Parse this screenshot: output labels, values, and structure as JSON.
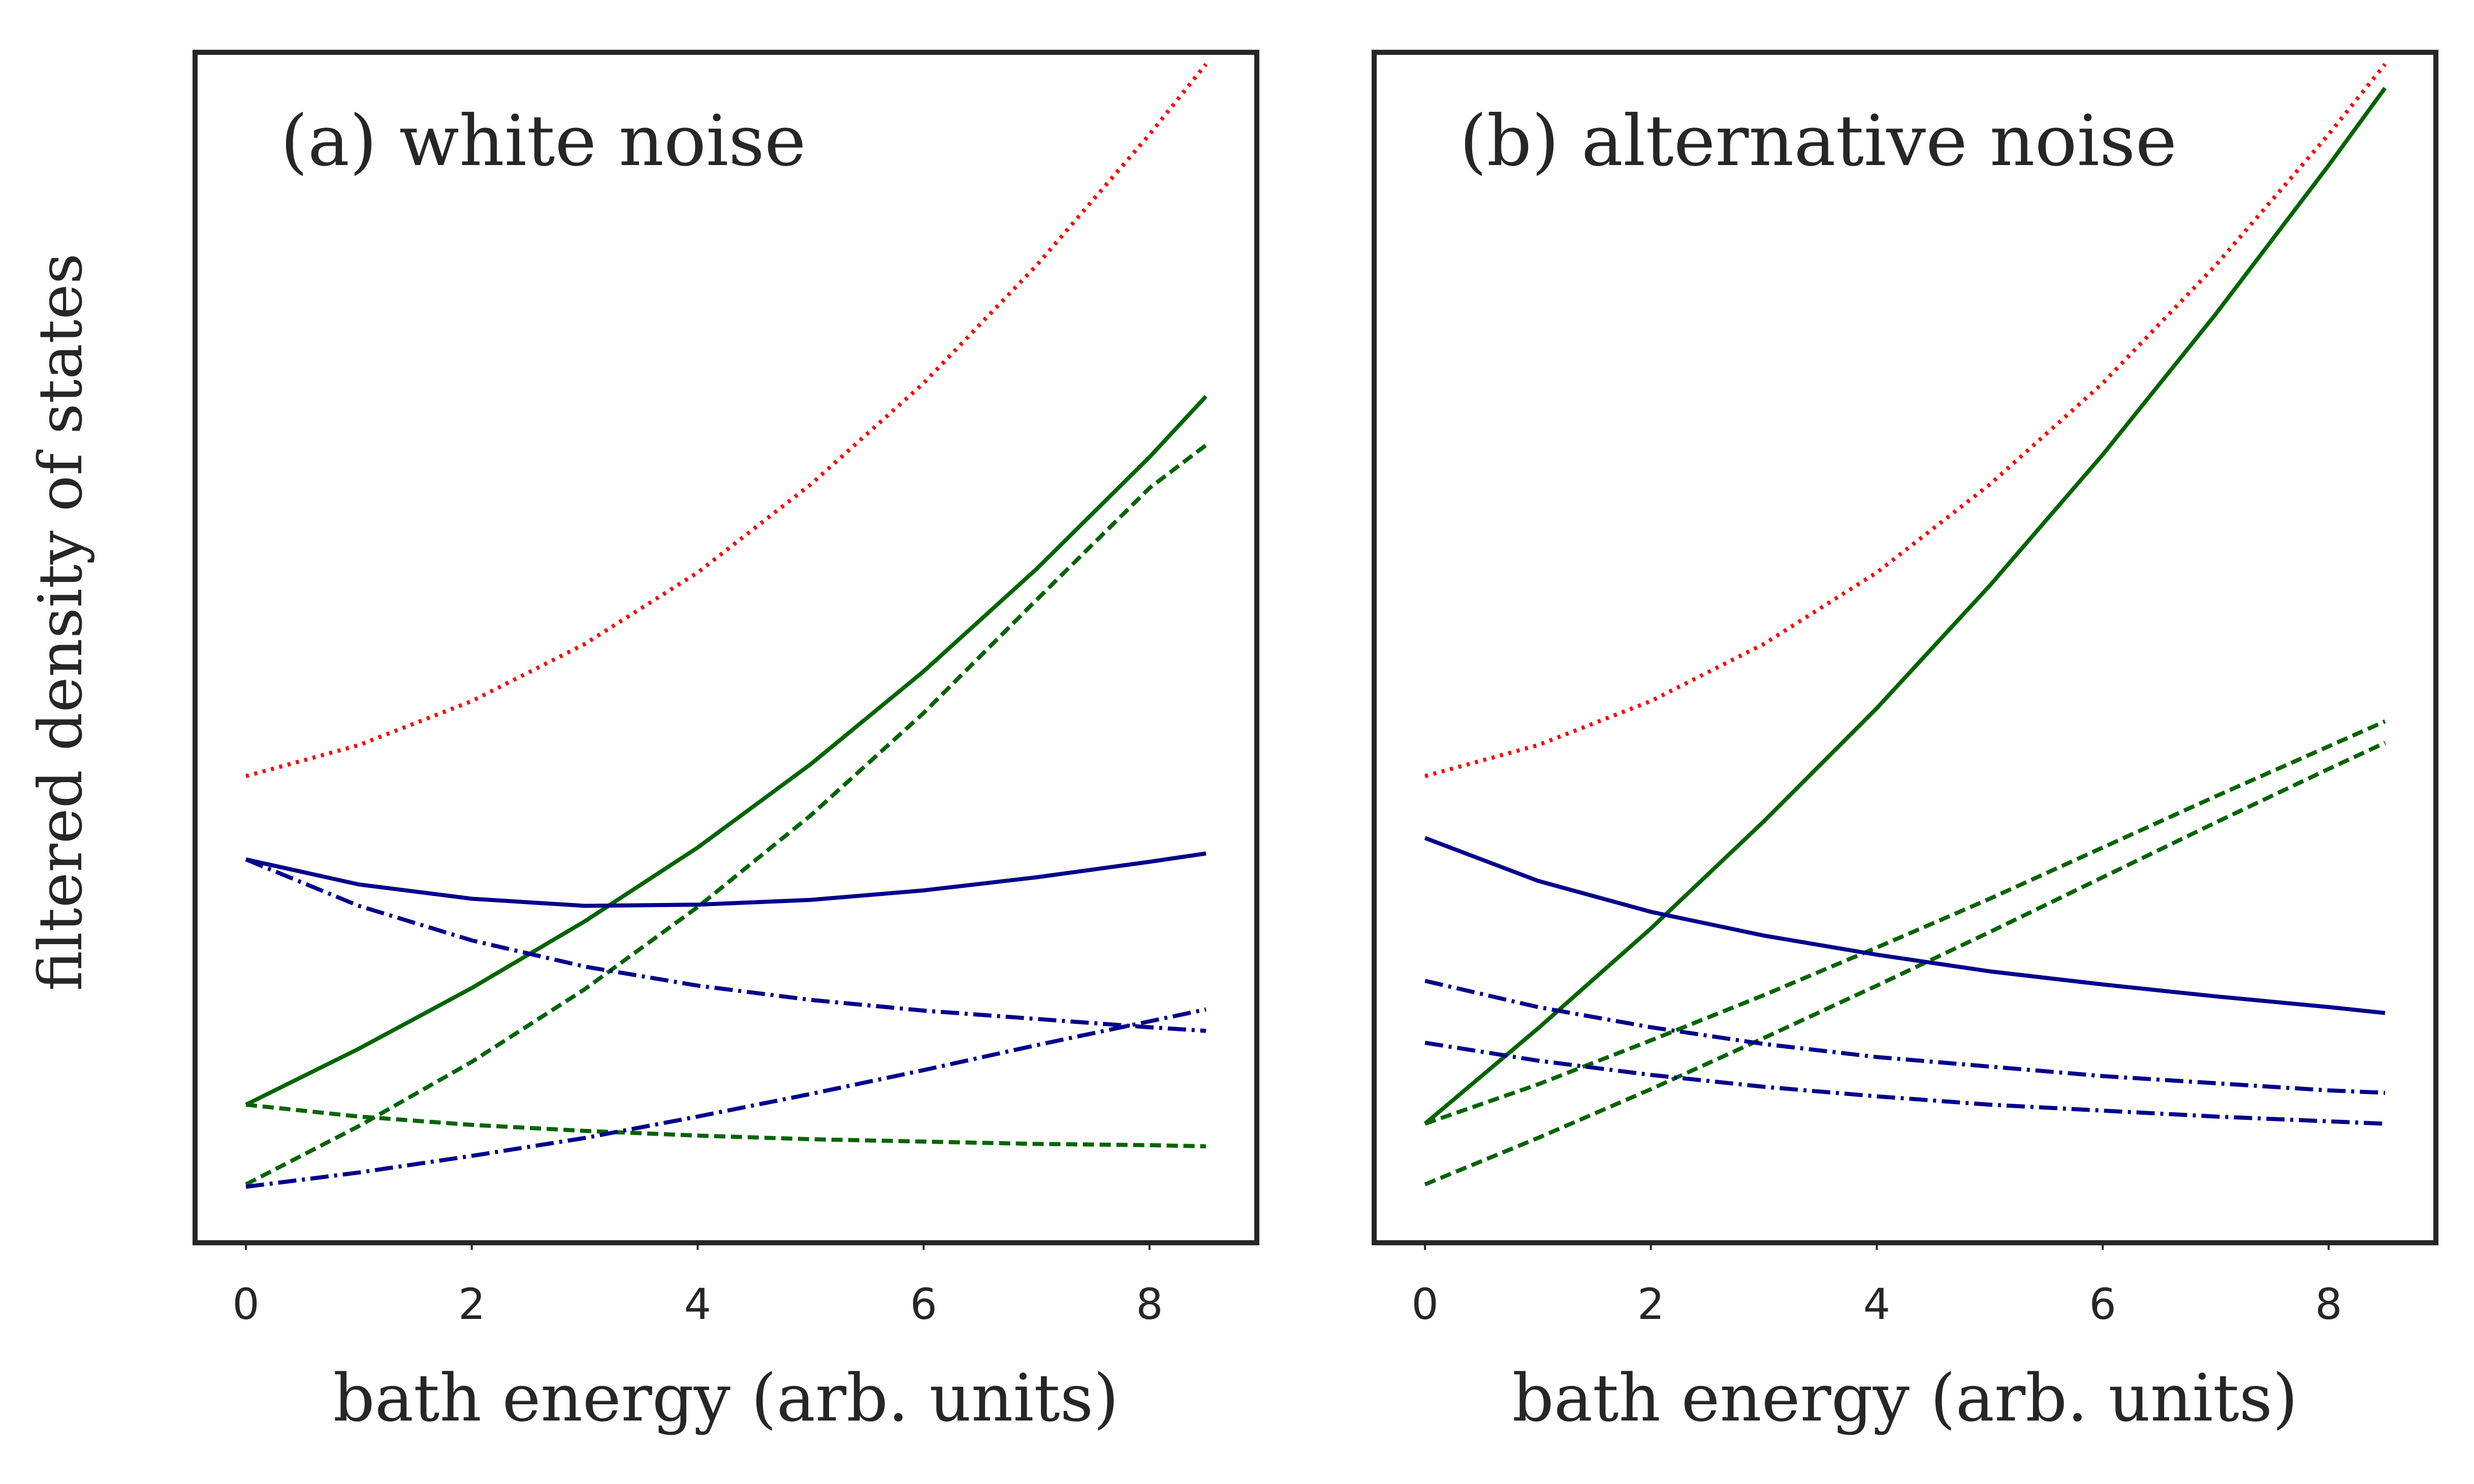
{
  "figure": {
    "ylabel": "filtered density of states"
  },
  "chart_data": [
    {
      "type": "line",
      "title": "(a) white noise",
      "xlabel": "bath energy (arb. units)",
      "ylabel": "filtered density of states",
      "xlim": [
        -0.45,
        8.95
      ],
      "ylim": [
        0,
        1
      ],
      "xticks": [
        0,
        2,
        4,
        6,
        8
      ],
      "xtick_labels": [
        "0",
        "2",
        "4",
        "6",
        "8"
      ],
      "yticks_visible": false,
      "grid": false,
      "series": [
        {
          "name": "red dotted",
          "color": "#ff0000",
          "style": "dotted",
          "x": [
            0,
            1,
            2,
            3,
            4,
            5,
            6,
            7,
            8,
            8.5
          ],
          "y": [
            0.392,
            0.418,
            0.455,
            0.503,
            0.563,
            0.637,
            0.722,
            0.821,
            0.931,
            0.99
          ]
        },
        {
          "name": "green solid",
          "color": "#006400",
          "style": "solid",
          "x": [
            0,
            1,
            2,
            3,
            4,
            5,
            6,
            7,
            8,
            8.5
          ],
          "y": [
            0.116,
            0.163,
            0.214,
            0.27,
            0.332,
            0.402,
            0.48,
            0.566,
            0.66,
            0.711
          ]
        },
        {
          "name": "green dashed A",
          "color": "#006400",
          "style": "dashed",
          "x": [
            0,
            1,
            2,
            3,
            4,
            5,
            6,
            7,
            8,
            8.5
          ],
          "y": [
            0.049,
            0.098,
            0.152,
            0.213,
            0.282,
            0.359,
            0.445,
            0.54,
            0.634,
            0.67
          ]
        },
        {
          "name": "green dashed B",
          "color": "#006400",
          "style": "dashed",
          "x": [
            0,
            1,
            2,
            3,
            4,
            5,
            6,
            7,
            8,
            8.5
          ],
          "y": [
            0.116,
            0.106,
            0.099,
            0.094,
            0.09,
            0.087,
            0.085,
            0.083,
            0.082,
            0.081
          ]
        },
        {
          "name": "blue solid",
          "color": "#00008b",
          "style": "solid",
          "x": [
            0,
            1,
            2,
            3,
            4,
            5,
            6,
            7,
            8,
            8.5
          ],
          "y": [
            0.322,
            0.301,
            0.289,
            0.283,
            0.284,
            0.288,
            0.296,
            0.307,
            0.32,
            0.327
          ]
        },
        {
          "name": "blue dash-dot A",
          "color": "#00008b",
          "style": "dashdot",
          "x": [
            0,
            1,
            2,
            3,
            4,
            5,
            6,
            7,
            8,
            8.5
          ],
          "y": [
            0.322,
            0.283,
            0.254,
            0.232,
            0.216,
            0.204,
            0.195,
            0.188,
            0.181,
            0.178
          ]
        },
        {
          "name": "blue dash-dot B",
          "color": "#00008b",
          "style": "dashdot",
          "x": [
            0,
            1,
            2,
            3,
            4,
            5,
            6,
            7,
            8,
            8.5
          ],
          "y": [
            0.047,
            0.059,
            0.073,
            0.088,
            0.106,
            0.125,
            0.145,
            0.166,
            0.186,
            0.196
          ]
        }
      ]
    },
    {
      "type": "line",
      "title": "(b) alternative noise",
      "xlabel": "bath energy (arb. units)",
      "ylabel": "",
      "xlim": [
        -0.45,
        8.95
      ],
      "ylim": [
        0,
        1
      ],
      "xticks": [
        0,
        2,
        4,
        6,
        8
      ],
      "xtick_labels": [
        "0",
        "2",
        "4",
        "6",
        "8"
      ],
      "yticks_visible": false,
      "grid": false,
      "series": [
        {
          "name": "red dotted",
          "color": "#ff0000",
          "style": "dotted",
          "x": [
            0,
            1,
            2,
            3,
            4,
            5,
            6,
            7,
            8,
            8.5
          ],
          "y": [
            0.392,
            0.418,
            0.455,
            0.503,
            0.563,
            0.637,
            0.722,
            0.821,
            0.931,
            0.99
          ]
        },
        {
          "name": "green solid",
          "color": "#006400",
          "style": "solid",
          "x": [
            0,
            1,
            2,
            3,
            4,
            5,
            6,
            7,
            8,
            8.5
          ],
          "y": [
            0.1,
            0.18,
            0.264,
            0.354,
            0.449,
            0.552,
            0.662,
            0.78,
            0.905,
            0.97
          ]
        },
        {
          "name": "green dashed A",
          "color": "#006400",
          "style": "dashed",
          "x": [
            0,
            1,
            2,
            3,
            4,
            5,
            6,
            7,
            8,
            8.5
          ],
          "y": [
            0.1,
            0.133,
            0.17,
            0.208,
            0.248,
            0.289,
            0.332,
            0.375,
            0.417,
            0.438
          ]
        },
        {
          "name": "green dashed B",
          "color": "#006400",
          "style": "dashed",
          "x": [
            0,
            1,
            2,
            3,
            4,
            5,
            6,
            7,
            8,
            8.5
          ],
          "y": [
            0.049,
            0.088,
            0.129,
            0.172,
            0.216,
            0.261,
            0.307,
            0.353,
            0.398,
            0.42
          ]
        },
        {
          "name": "blue solid",
          "color": "#00008b",
          "style": "solid",
          "x": [
            0,
            1,
            2,
            3,
            4,
            5,
            6,
            7,
            8,
            8.5
          ],
          "y": [
            0.34,
            0.304,
            0.278,
            0.258,
            0.242,
            0.228,
            0.217,
            0.207,
            0.198,
            0.193
          ]
        },
        {
          "name": "blue dash-dot A",
          "color": "#00008b",
          "style": "dashdot",
          "x": [
            0,
            1,
            2,
            3,
            4,
            5,
            6,
            7,
            8,
            8.5
          ],
          "y": [
            0.22,
            0.198,
            0.181,
            0.167,
            0.156,
            0.148,
            0.14,
            0.134,
            0.128,
            0.126
          ]
        },
        {
          "name": "blue dash-dot B",
          "color": "#00008b",
          "style": "dashdot",
          "x": [
            0,
            1,
            2,
            3,
            4,
            5,
            6,
            7,
            8,
            8.5
          ],
          "y": [
            0.168,
            0.153,
            0.141,
            0.131,
            0.123,
            0.116,
            0.111,
            0.106,
            0.102,
            0.1
          ]
        }
      ]
    }
  ]
}
